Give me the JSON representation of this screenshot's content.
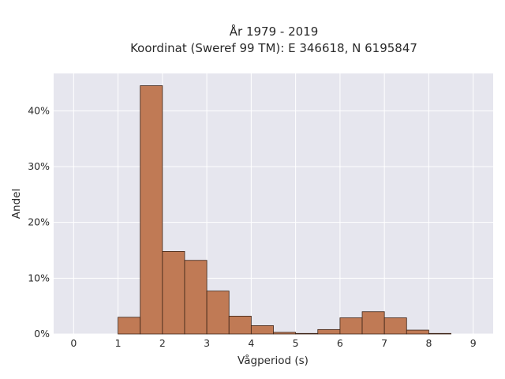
{
  "chart_data": {
    "type": "bar",
    "title": "År 1979 - 2019",
    "subtitle": "Koordinat (Sweref 99 TM): E 346618, N 6195847",
    "xlabel": "Vågperiod (s)",
    "ylabel": "Andel",
    "xlim": [
      -0.45,
      9.45
    ],
    "ylim": [
      0,
      0.467
    ],
    "x_ticks": [
      0,
      1,
      2,
      3,
      4,
      5,
      6,
      7,
      8,
      9
    ],
    "x_tick_labels": [
      "0",
      "1",
      "2",
      "3",
      "4",
      "5",
      "6",
      "7",
      "8",
      "9"
    ],
    "y_ticks": [
      0,
      0.1,
      0.2,
      0.3,
      0.4
    ],
    "y_tick_labels": [
      "0%",
      "10%",
      "20%",
      "30%",
      "40%"
    ],
    "bin_width": 0.5,
    "bins": [
      {
        "start": 1.0,
        "value": 0.03
      },
      {
        "start": 1.5,
        "value": 0.445
      },
      {
        "start": 2.0,
        "value": 0.148
      },
      {
        "start": 2.5,
        "value": 0.132
      },
      {
        "start": 3.0,
        "value": 0.077
      },
      {
        "start": 3.5,
        "value": 0.032
      },
      {
        "start": 4.0,
        "value": 0.015
      },
      {
        "start": 4.5,
        "value": 0.003
      },
      {
        "start": 5.0,
        "value": 0.001
      },
      {
        "start": 5.5,
        "value": 0.008
      },
      {
        "start": 6.0,
        "value": 0.029
      },
      {
        "start": 6.5,
        "value": 0.04
      },
      {
        "start": 7.0,
        "value": 0.029
      },
      {
        "start": 7.5,
        "value": 0.007
      },
      {
        "start": 8.0,
        "value": 0.001
      }
    ],
    "grid": true,
    "colors": {
      "bar_fill": "#c07a55",
      "bar_edge": "#3d2417",
      "plot_background": "#e6e6ee",
      "grid": "#ffffff"
    }
  }
}
